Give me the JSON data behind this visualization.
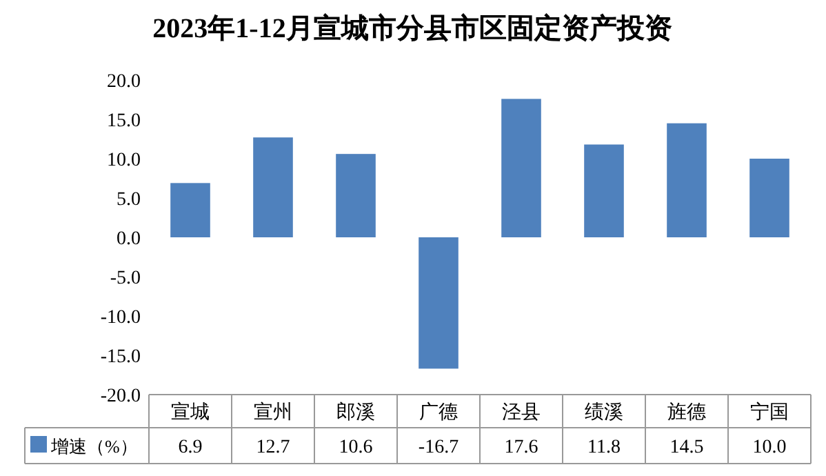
{
  "chart_data": {
    "type": "bar",
    "title": "2023年1-12月宣城市分县市区固定资产投资",
    "categories": [
      "宣城",
      "宣州",
      "郎溪",
      "广德",
      "泾县",
      "绩溪",
      "旌德",
      "宁国"
    ],
    "series": [
      {
        "name": "增速（%）",
        "color": "#4f81bd",
        "values": [
          6.9,
          12.7,
          10.6,
          -16.7,
          17.6,
          11.8,
          14.5,
          10.0
        ],
        "value_labels": [
          "6.9",
          "12.7",
          "10.6",
          "-16.7",
          "17.6",
          "11.8",
          "14.5",
          "10.0"
        ]
      }
    ],
    "ylim": [
      -20,
      20
    ],
    "yticks": [
      {
        "value": 20,
        "label": "20.0"
      },
      {
        "value": 15,
        "label": "15.0"
      },
      {
        "value": 10,
        "label": "10.0"
      },
      {
        "value": 5,
        "label": "5.0"
      },
      {
        "value": 0,
        "label": "0.0"
      },
      {
        "value": -5,
        "label": "-5.0"
      },
      {
        "value": -10,
        "label": "-10.0"
      },
      {
        "value": -15,
        "label": "-15.0"
      },
      {
        "value": -20,
        "label": "-20.0"
      }
    ],
    "legend": "bottom left"
  }
}
